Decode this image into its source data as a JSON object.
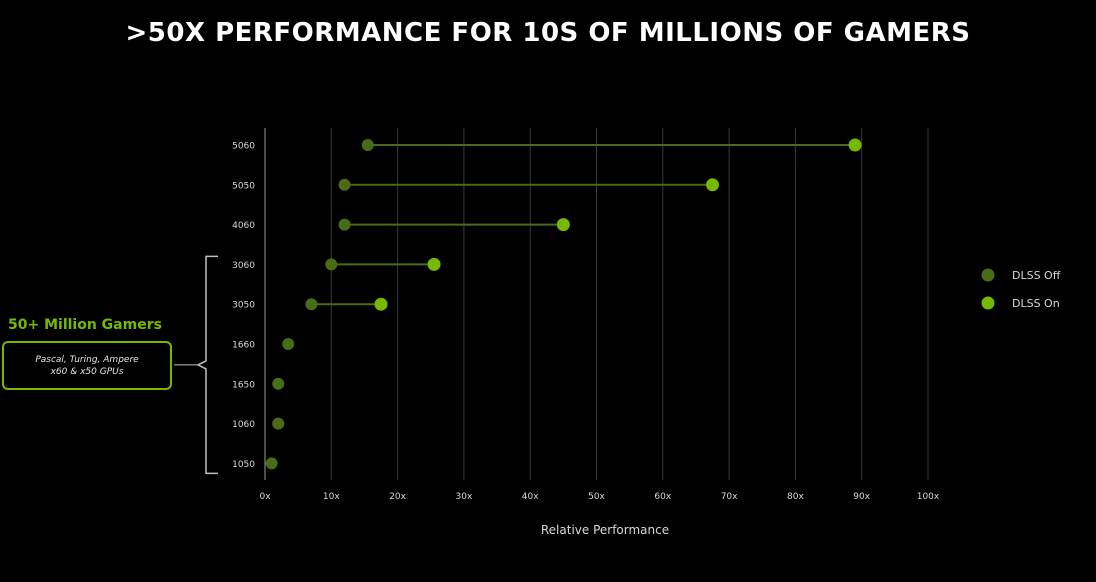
{
  "title": ">50X PERFORMANCE FOR 10S OF MILLIONS OF GAMERS",
  "callout": {
    "title": "50+ Million Gamers",
    "line1": "Pascal, Turing, Ampere",
    "line2": "x60 & x50 GPUs"
  },
  "colors": {
    "dlss_off": "#4a6b18",
    "dlss_on": "#76b900",
    "connector": "#4a6b18",
    "grid": "#3a3a3a",
    "axis": "#9a9a9a"
  },
  "chart_data": {
    "type": "dumbbell",
    "orientation": "horizontal",
    "categories": [
      "5060",
      "5050",
      "4060",
      "3060",
      "3050",
      "1660",
      "1650",
      "1060",
      "1050"
    ],
    "series": [
      {
        "name": "DLSS Off",
        "values": [
          15.5,
          12,
          12,
          10,
          7,
          3.5,
          2,
          2,
          1
        ]
      },
      {
        "name": "DLSS On",
        "values": [
          89,
          67.5,
          45,
          25.5,
          17.5,
          null,
          null,
          null,
          null
        ]
      }
    ],
    "xlabel": "Relative Performance",
    "xticks": [
      "0x",
      "10x",
      "20x",
      "30x",
      "40x",
      "50x",
      "60x",
      "70x",
      "80x",
      "90x",
      "100x"
    ],
    "xlim": [
      0,
      100
    ],
    "grid": true,
    "legend_position": "right"
  }
}
